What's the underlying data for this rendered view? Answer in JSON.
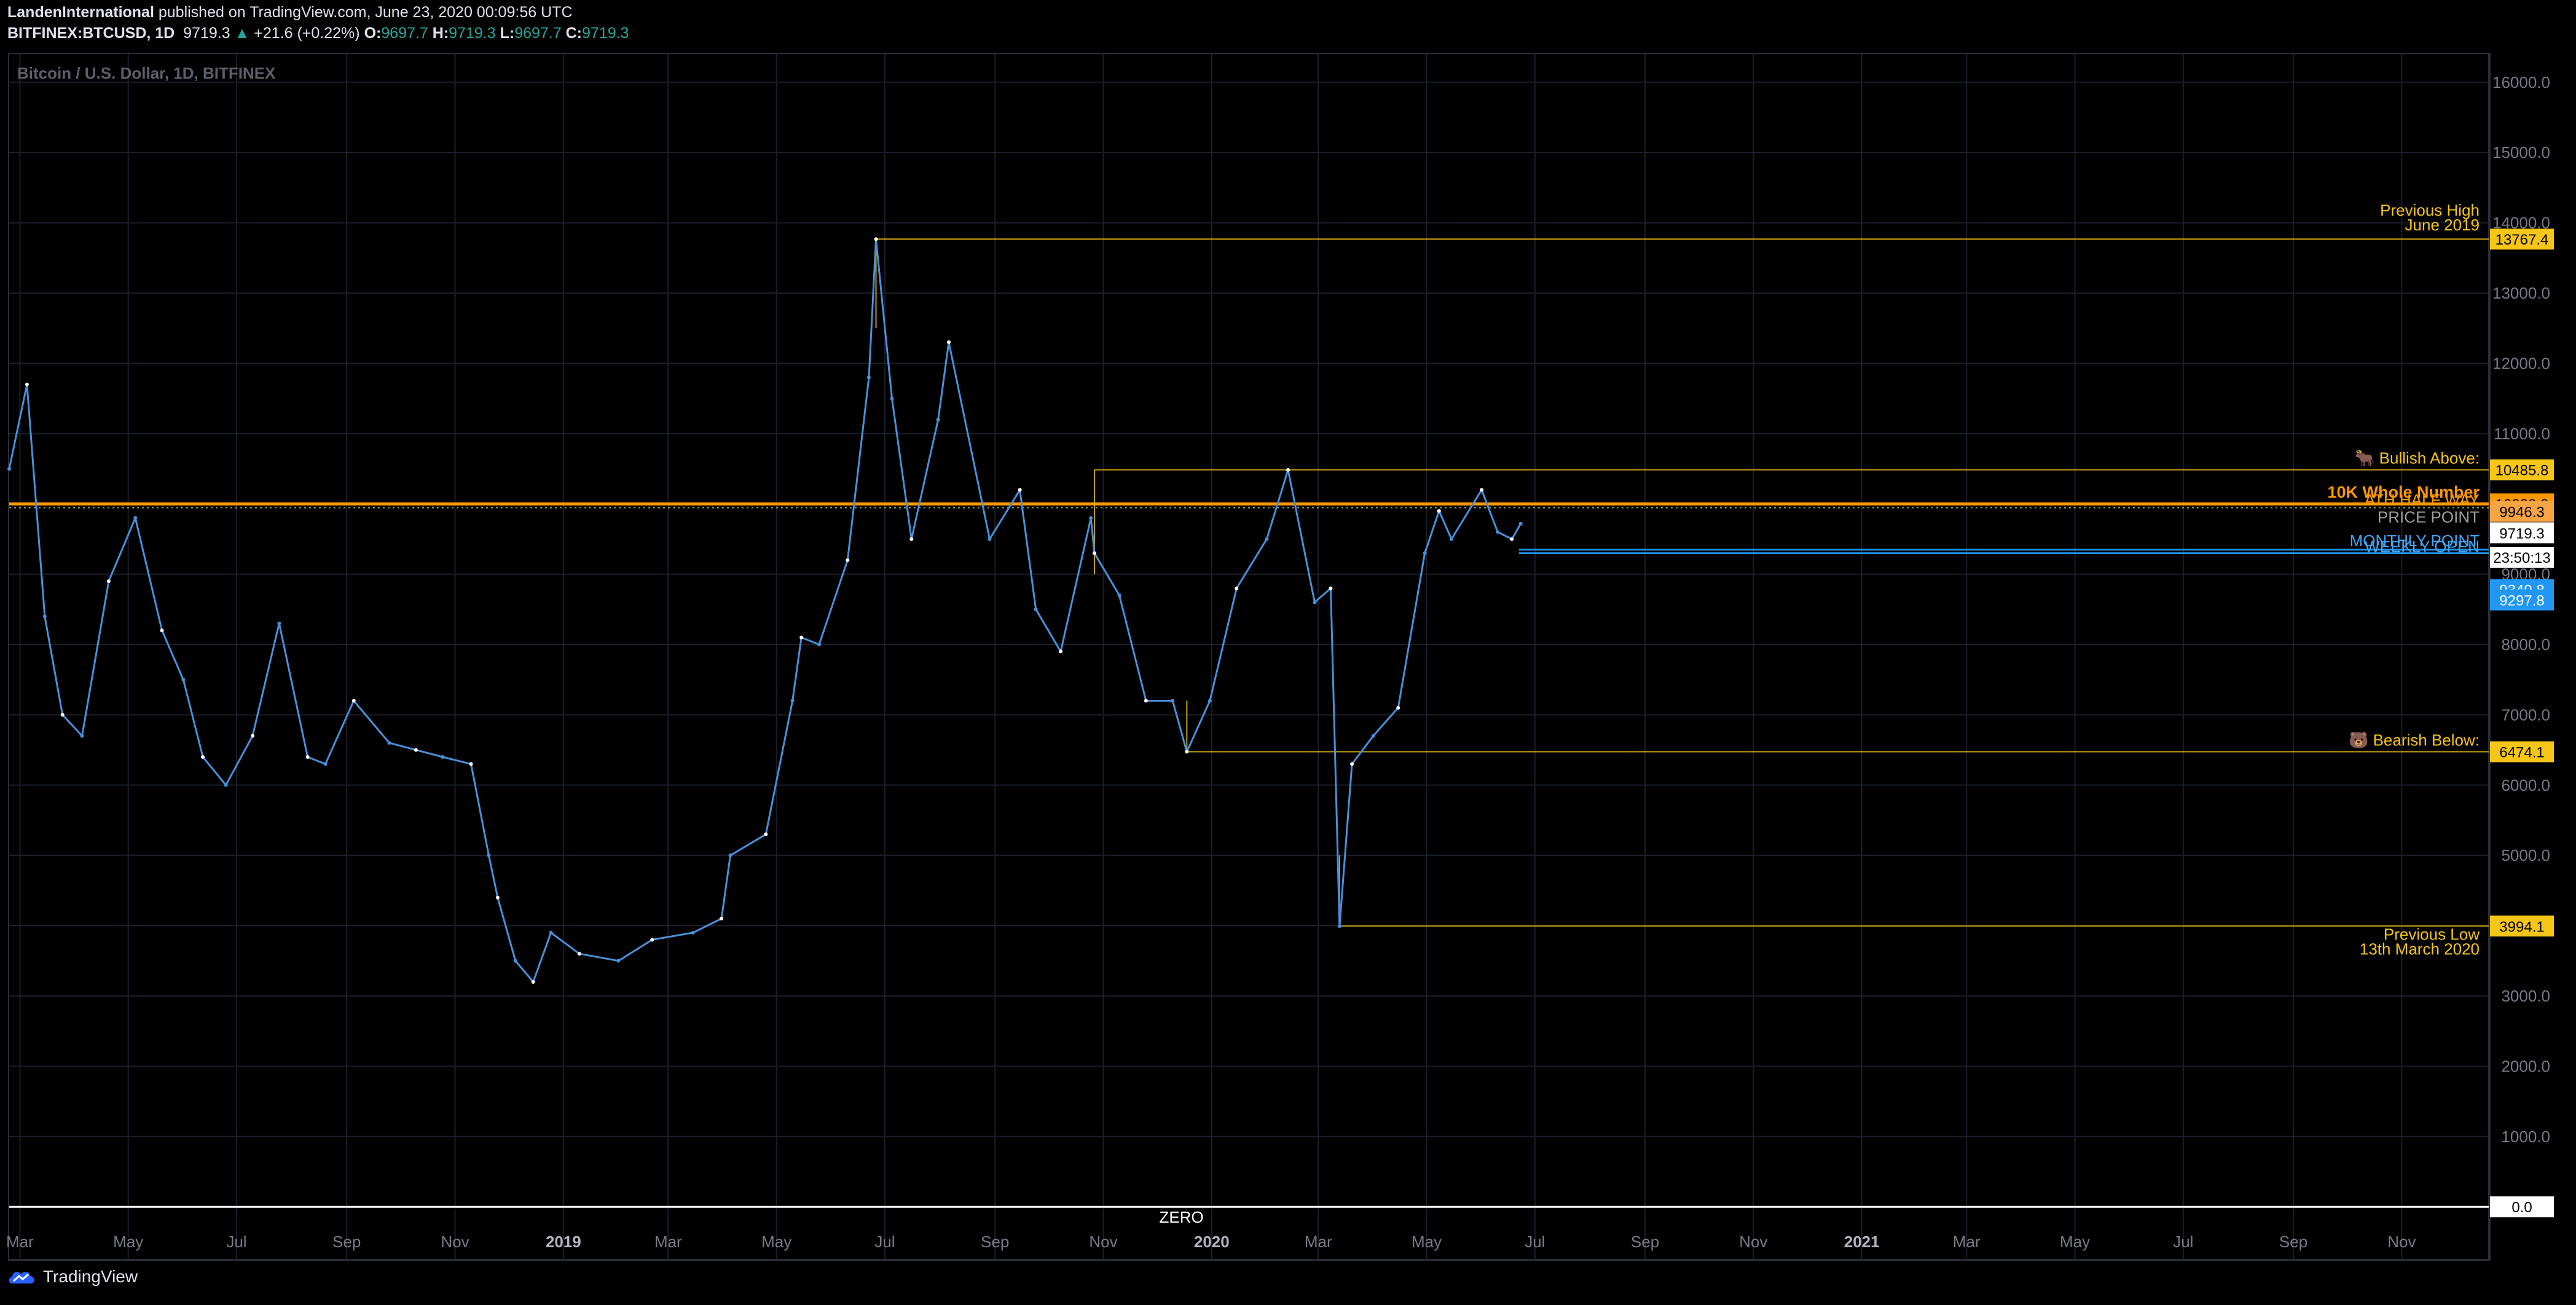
{
  "header": {
    "publisher": "LandenInternational",
    "published_text": " published on TradingView.com, June 23, 2020 00:09:56 UTC",
    "symbol": "BITFINEX:BTCUSD, 1D",
    "last": "9719.3",
    "change": "+21.6 (+0.22%)",
    "o_label": "O:",
    "o_val": "9697.7",
    "h_label": "H:",
    "h_val": "9719.3",
    "l_label": "L:",
    "l_val": "9697.7",
    "c_label": "C:",
    "c_val": "9719.3"
  },
  "footer": {
    "brand": "TradingView"
  },
  "colors": {
    "up": "#ffffff",
    "down": "#4a90d9",
    "gold": "#f5c518",
    "orange": "#ff9800",
    "blue": "#2196f3",
    "grid": "#1b1f2a"
  },
  "chart_data": {
    "type": "line",
    "title": "Bitcoin / U.S. Dollar, 1D, BITFINEX",
    "ylim": [
      -750,
      16400
    ],
    "y_ticks": [
      "16000.0",
      "15000.0",
      "14000.0",
      "13000.0",
      "12000.0",
      "11000.0",
      "10000.0",
      "9000.0",
      "8000.0",
      "7000.0",
      "6000.0",
      "5000.0",
      "4000.0",
      "3000.0",
      "2000.0",
      "1000.0"
    ],
    "y_tick_values": [
      16000,
      15000,
      14000,
      13000,
      12000,
      11000,
      10000,
      9000,
      8000,
      7000,
      6000,
      5000,
      4000,
      3000,
      2000,
      1000
    ],
    "x_ticks": [
      "Mar",
      "May",
      "Jul",
      "Sep",
      "Nov",
      "2019",
      "Mar",
      "May",
      "Jul",
      "Sep",
      "Nov",
      "2020",
      "Mar",
      "May",
      "Jul",
      "Sep",
      "Nov",
      "2021",
      "Mar",
      "May",
      "Jul",
      "Sep",
      "Nov"
    ],
    "x_tick_dates": [
      "2018-03-01",
      "2018-05-01",
      "2018-07-01",
      "2018-09-01",
      "2018-11-01",
      "2019-01-01",
      "2019-03-01",
      "2019-05-01",
      "2019-07-01",
      "2019-09-01",
      "2019-11-01",
      "2020-01-01",
      "2020-03-01",
      "2020-05-01",
      "2020-07-01",
      "2020-09-01",
      "2020-11-01",
      "2021-01-01",
      "2021-03-01",
      "2021-05-01",
      "2021-07-01",
      "2021-09-01",
      "2021-11-01"
    ],
    "xlim": [
      "2018-02-23",
      "2021-12-20"
    ],
    "series": [
      {
        "x": [
          "2018-02-23",
          "2018-03-05",
          "2018-03-15",
          "2018-03-25",
          "2018-04-05",
          "2018-04-20",
          "2018-05-05",
          "2018-05-20",
          "2018-06-01",
          "2018-06-12",
          "2018-06-25",
          "2018-07-10",
          "2018-07-25",
          "2018-08-10",
          "2018-08-20",
          "2018-09-05",
          "2018-09-25",
          "2018-10-10",
          "2018-10-25",
          "2018-11-10",
          "2018-11-20",
          "2018-11-25",
          "2018-12-05",
          "2018-12-15",
          "2018-12-25",
          "2019-01-10",
          "2019-02-01",
          "2019-02-20",
          "2019-03-15",
          "2019-03-31",
          "2019-04-05",
          "2019-04-25",
          "2019-05-10",
          "2019-05-15",
          "2019-05-25",
          "2019-06-10",
          "2019-06-22",
          "2019-06-26",
          "2019-07-05",
          "2019-07-16",
          "2019-07-31",
          "2019-08-06",
          "2019-08-29",
          "2019-09-15",
          "2019-09-24",
          "2019-10-08",
          "2019-10-25",
          "2019-10-27",
          "2019-11-10",
          "2019-11-25",
          "2019-12-10",
          "2019-12-18",
          "2019-12-31",
          "2020-01-15",
          "2020-02-01",
          "2020-02-13",
          "2020-02-28",
          "2020-03-08",
          "2020-03-13",
          "2020-03-20",
          "2020-04-01",
          "2020-04-15",
          "2020-04-30",
          "2020-05-08",
          "2020-05-15",
          "2020-06-01",
          "2020-06-10",
          "2020-06-18",
          "2020-06-23"
        ],
        "y": [
          10500,
          11700,
          8400,
          7000,
          6700,
          8900,
          9800,
          8200,
          7500,
          6400,
          6000,
          6700,
          8300,
          6400,
          6300,
          7200,
          6600,
          6500,
          6400,
          6300,
          5000,
          4400,
          3500,
          3200,
          3900,
          3600,
          3500,
          3800,
          3900,
          4100,
          5000,
          5300,
          7200,
          8100,
          8000,
          9200,
          11800,
          13767,
          11500,
          9500,
          11200,
          12300,
          9500,
          10200,
          8500,
          7900,
          9800,
          9300,
          8700,
          7200,
          7200,
          6474,
          7200,
          8800,
          9500,
          10485,
          8600,
          8800,
          3994,
          6300,
          6700,
          7100,
          9300,
          9900,
          9500,
          10200,
          9600,
          9500,
          9719
        ]
      }
    ],
    "levels": [
      {
        "price": 13767.4,
        "label": "Previous High",
        "label2": "June 2019",
        "value": "13767.4",
        "kind": "gold",
        "start": "2019-06-26"
      },
      {
        "price": 10485.8,
        "label": "🐂 Bullish Above:",
        "value": "10485.8",
        "kind": "gold",
        "start": "2019-10-27"
      },
      {
        "price": 10000,
        "label": "10K Whole Number",
        "value": "10000.0",
        "kind": "orange",
        "start": "2018-02-23"
      },
      {
        "price": 9946.3,
        "label": "ATH HALF WAY",
        "value": "9946.3",
        "kind": "orange-dot",
        "start": "2018-02-23"
      },
      {
        "price": 9719.3,
        "label": "PRICE POINT",
        "value": "9719.3",
        "kind": "price",
        "start": "2020-06-23"
      },
      {
        "price": 9450,
        "label": "MONTHLY POINT",
        "value": "23:50:13",
        "kind": "timer",
        "start": "2020-06-23"
      },
      {
        "price": 9349.8,
        "label": "WEEKLY OPEN",
        "value": "9349.8",
        "kind": "blue",
        "start": "2020-06-22"
      },
      {
        "price": 9297.8,
        "label": "",
        "value": "9297.8",
        "kind": "blue",
        "start": "2020-06-22"
      },
      {
        "price": 6474.1,
        "label": "🐻 Bearish Below:",
        "value": "6474.1",
        "kind": "gold",
        "start": "2019-12-18"
      },
      {
        "price": 3994.1,
        "label": "Previous Low",
        "label2": "13th March 2020",
        "value": "3994.1",
        "kind": "gold",
        "start": "2020-03-13"
      },
      {
        "price": 0,
        "label": "ZERO",
        "value": "0.0",
        "kind": "white",
        "start": "2018-02-23"
      }
    ]
  }
}
